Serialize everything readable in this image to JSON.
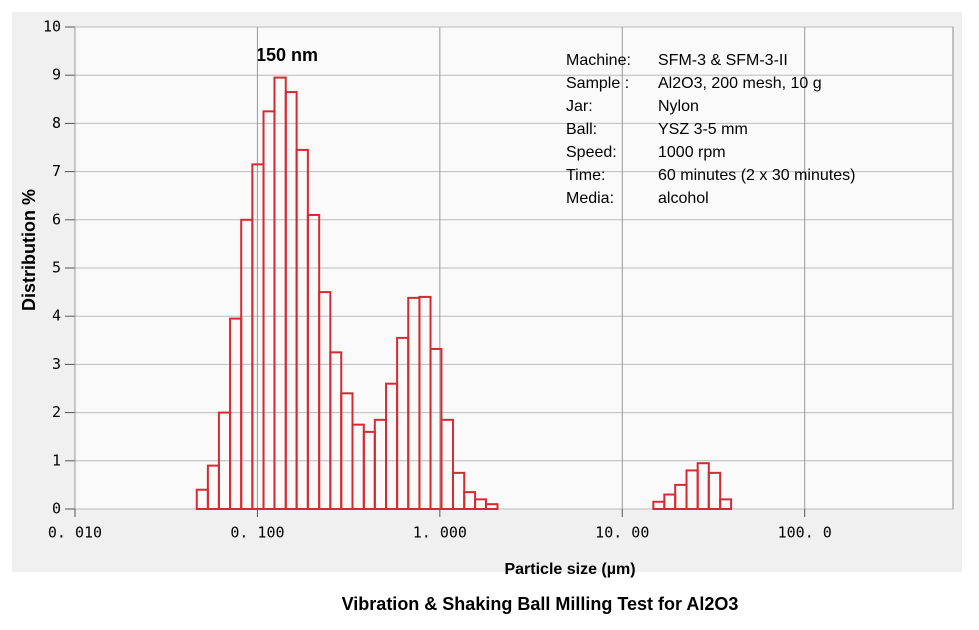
{
  "chart_data": {
    "type": "histogram",
    "title": "Vibration & Shaking Ball Milling Test for Al2O3",
    "xlabel": "Particle size (µm)",
    "ylabel": "Distribution %",
    "annotation": "150 nm",
    "info": [
      {
        "label": "Machine:",
        "value": "SFM-3 & SFM-3-II"
      },
      {
        "label": "Sample :",
        "value": "Al2O3, 200 mesh, 10 g"
      },
      {
        "label": "Jar:",
        "value": "Nylon"
      },
      {
        "label": "Ball:",
        "value": "YSZ  3-5 mm"
      },
      {
        "label": "Speed:",
        "value": "1000 rpm"
      },
      {
        "label": "Time:",
        "value": "60 minutes  (2 x 30 minutes)"
      },
      {
        "label": "Media:",
        "value": "alcohol"
      }
    ],
    "log_x": true,
    "color": "#d42a32",
    "grid": true,
    "bins": [
      0.0465,
      0.0535,
      0.0615,
      0.0708,
      0.0815,
      0.0938,
      0.108,
      0.124,
      0.143,
      0.164,
      0.189,
      0.218,
      0.251,
      0.288,
      0.332,
      0.383,
      0.44,
      0.507,
      0.583,
      0.671,
      0.773,
      0.889,
      1.02,
      1.18,
      1.36,
      1.56,
      1.79,
      2.07,
      2.38,
      2.74,
      3.15,
      3.62,
      4.17,
      4.8,
      5.52,
      6.35,
      7.31,
      8.41,
      9.68,
      11.1,
      12.8,
      14.8,
      17.0,
      19.5,
      22.5,
      25.9,
      29.8,
      34.4,
      39.5
    ],
    "values": [
      0.4,
      0.9,
      2.0,
      3.95,
      6.0,
      7.15,
      8.25,
      8.95,
      8.65,
      7.45,
      6.1,
      4.5,
      3.25,
      2.4,
      1.75,
      1.6,
      1.85,
      2.6,
      3.55,
      4.38,
      4.4,
      3.32,
      1.85,
      0.75,
      0.35,
      0.2,
      0.1,
      0,
      0,
      0,
      0,
      0,
      0,
      0,
      0,
      0,
      0,
      0,
      0,
      0,
      0,
      0.15,
      0.3,
      0.5,
      0.8,
      0.95,
      0.75,
      0.2
    ],
    "xlim": [
      0.01,
      650
    ],
    "xticks": [
      {
        "value": 0.01,
        "label": "0. 010"
      },
      {
        "value": 0.1,
        "label": "0. 100"
      },
      {
        "value": 1,
        "label": "1. 000"
      },
      {
        "value": 10,
        "label": "10. 00"
      },
      {
        "value": 100,
        "label": "100. 0"
      }
    ],
    "ylim": [
      0,
      10
    ],
    "yticks": [
      0,
      1,
      2,
      3,
      4,
      5,
      6,
      7,
      8,
      9,
      10
    ]
  }
}
